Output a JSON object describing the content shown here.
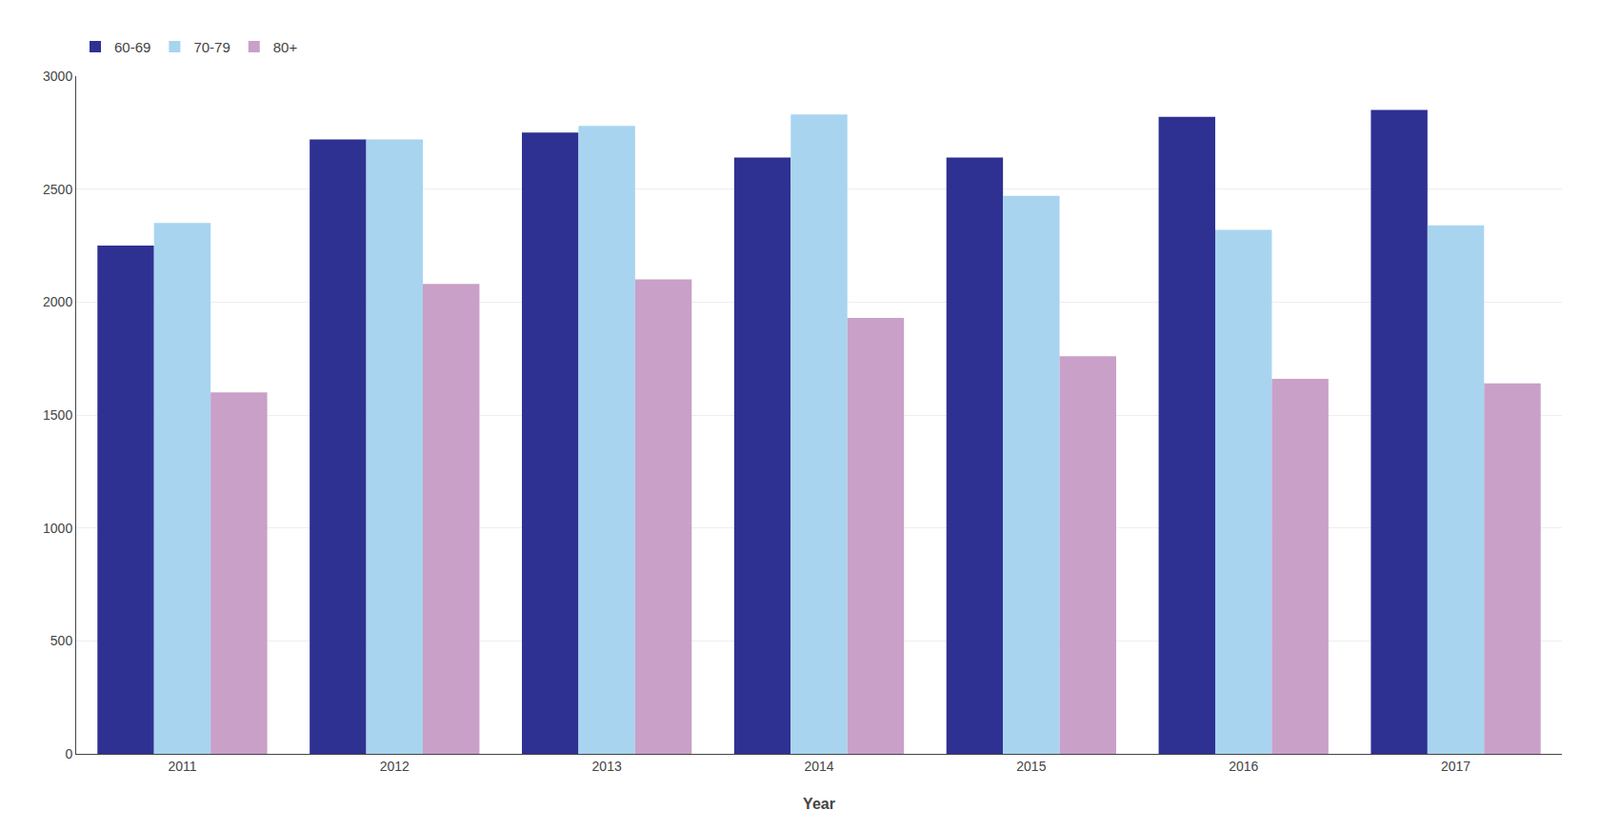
{
  "chart_data": {
    "type": "bar",
    "xlabel": "Year",
    "categories": [
      "2011",
      "2012",
      "2013",
      "2014",
      "2015",
      "2016",
      "2017"
    ],
    "series": [
      {
        "name": "60-69",
        "color": "#2e3192",
        "values": [
          2250,
          2720,
          2750,
          2640,
          2640,
          2820,
          2850
        ]
      },
      {
        "name": "70-79",
        "color": "#a8d4f0",
        "values": [
          2350,
          2720,
          2780,
          2830,
          2470,
          2320,
          2340
        ]
      },
      {
        "name": "80+",
        "color": "#c9a0c8",
        "values": [
          1600,
          2080,
          2100,
          1930,
          1760,
          1660,
          1640
        ]
      }
    ],
    "ylim": [
      0,
      3000
    ],
    "yticks": [
      0,
      500,
      1000,
      1500,
      2000,
      2500,
      3000
    ],
    "grid": true,
    "legend": "upper left"
  }
}
